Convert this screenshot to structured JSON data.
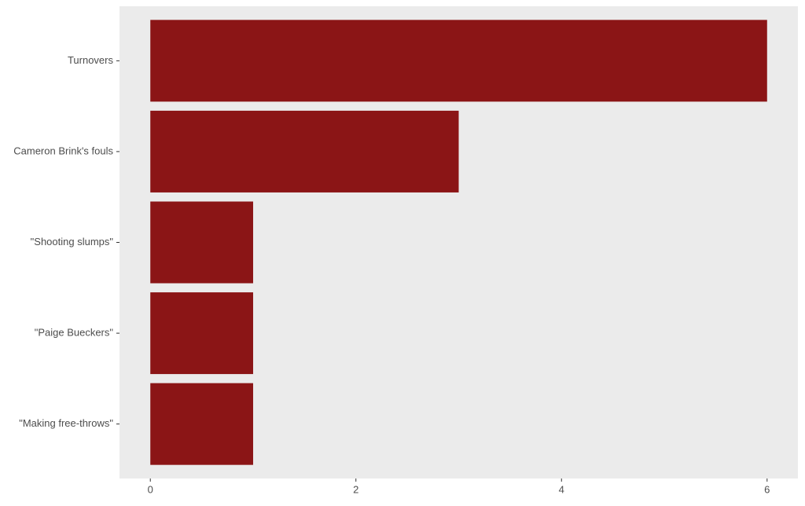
{
  "chart_data": {
    "type": "hbar",
    "categories": [
      "Turnovers",
      "Cameron Brink's fouls",
      "\"Shooting slumps\"",
      "\"Paige Bueckers\"",
      "\"Making free-throws\""
    ],
    "values": [
      6,
      3,
      1,
      1,
      1
    ],
    "color": "#8b1516",
    "xlim": [
      -0.3,
      6.3
    ],
    "xticks": [
      0,
      2,
      4,
      6
    ],
    "grid": false
  }
}
